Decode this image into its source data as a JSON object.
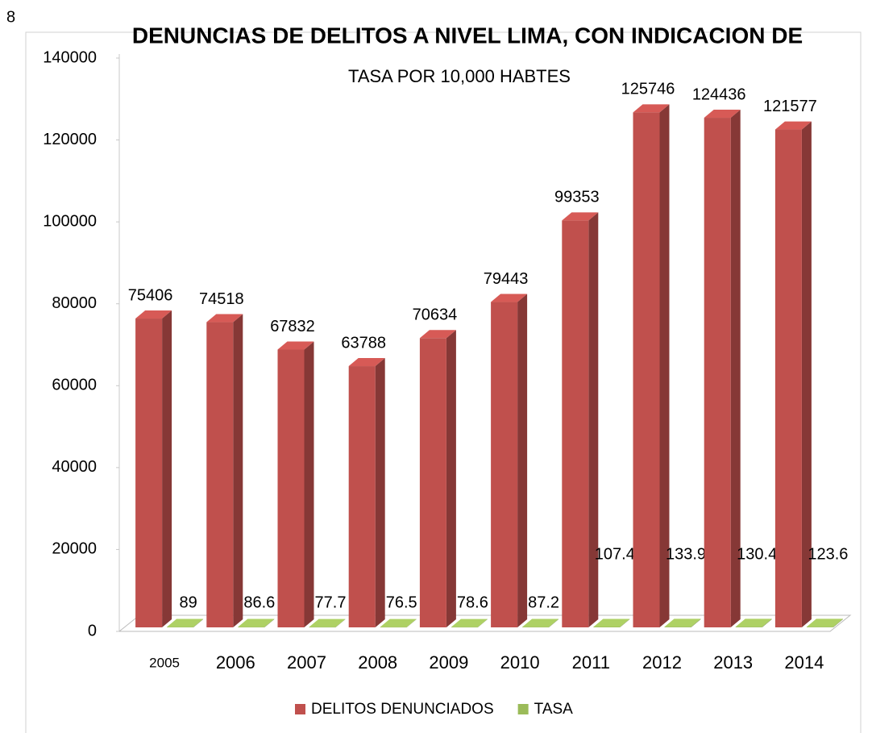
{
  "corner_label": "8",
  "chart_data": {
    "type": "bar3d",
    "title": "DENUNCIAS DE DELITOS A NIVEL  LIMA, CON INDICACION DE",
    "subtitle": "TASA POR 10,000 HABTES",
    "categories": [
      "2005",
      "2006",
      "2007",
      "2008",
      "2009",
      "2010",
      "2011",
      "2012",
      "2013",
      "2014"
    ],
    "series": [
      {
        "name": "DELITOS DENUNCIADOS",
        "color": "#c0504d",
        "values": [
          75406,
          74518,
          67832,
          63788,
          70634,
          79443,
          99353,
          125746,
          124436,
          121577
        ]
      },
      {
        "name": "TASA",
        "color": "#9bbb59",
        "values": [
          89,
          86.6,
          77.7,
          76.5,
          78.6,
          87.2,
          107.4,
          133.9,
          130.4,
          123.6
        ]
      }
    ],
    "ylim": [
      0,
      140000
    ],
    "yticks": [
      0,
      20000,
      40000,
      60000,
      80000,
      100000,
      120000,
      140000
    ],
    "grid": false,
    "legend": "bottom"
  }
}
